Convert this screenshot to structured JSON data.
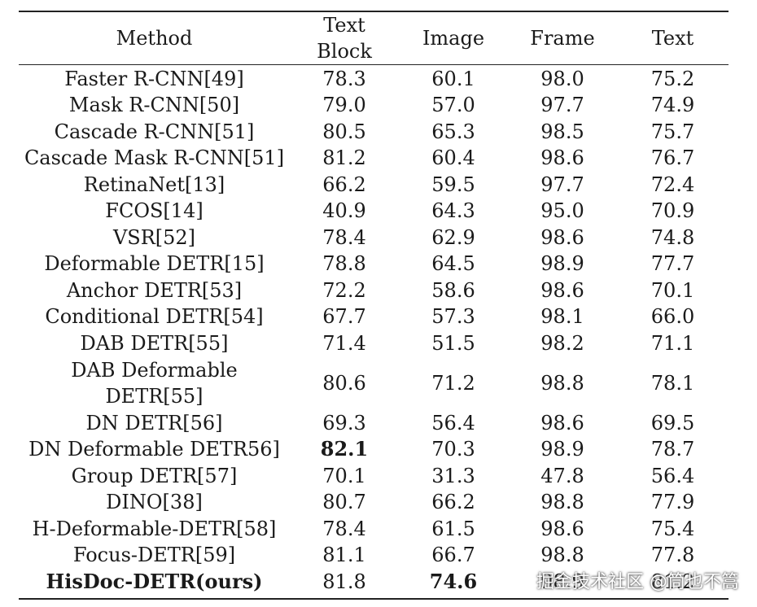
{
  "table": {
    "headers": {
      "method": "Method",
      "text_block_line1": "Text",
      "text_block_line2": "Block",
      "image": "Image",
      "frame": "Frame",
      "text": "Text"
    },
    "rows": [
      {
        "method": "Faster R-CNN[49]",
        "text_block": "78.3",
        "image": "60.1",
        "frame": "98.0",
        "text": "75.2"
      },
      {
        "method": "Mask R-CNN[50]",
        "text_block": "79.0",
        "image": "57.0",
        "frame": "97.7",
        "text": "74.9"
      },
      {
        "method": "Cascade R-CNN[51]",
        "text_block": "80.5",
        "image": "65.3",
        "frame": "98.5",
        "text": "75.7"
      },
      {
        "method": "Cascade Mask R-CNN[51]",
        "text_block": "81.2",
        "image": "60.4",
        "frame": "98.6",
        "text": "76.7"
      },
      {
        "method": "RetinaNet[13]",
        "text_block": "66.2",
        "image": "59.5",
        "frame": "97.7",
        "text": "72.4"
      },
      {
        "method": "FCOS[14]",
        "text_block": "40.9",
        "image": "64.3",
        "frame": "95.0",
        "text": "70.9"
      },
      {
        "method": "VSR[52]",
        "text_block": "78.4",
        "image": "62.9",
        "frame": "98.6",
        "text": "74.8"
      },
      {
        "method": "Deformable DETR[15]",
        "text_block": "78.8",
        "image": "64.5",
        "frame": "98.9",
        "text": "77.7"
      },
      {
        "method": "Anchor DETR[53]",
        "text_block": "72.2",
        "image": "58.6",
        "frame": "98.6",
        "text": "70.1"
      },
      {
        "method": "Conditional DETR[54]",
        "text_block": "67.7",
        "image": "57.3",
        "frame": "98.1",
        "text": "66.0"
      },
      {
        "method": "DAB DETR[55]",
        "text_block": "71.4",
        "image": "51.5",
        "frame": "98.2",
        "text": "71.1"
      },
      {
        "method": "DAB Deformable",
        "method_line2": "DETR[55]",
        "text_block": "80.6",
        "image": "71.2",
        "frame": "98.8",
        "text": "78.1"
      },
      {
        "method": "DN DETR[56]",
        "text_block": "69.3",
        "image": "56.4",
        "frame": "98.6",
        "text": "69.5"
      },
      {
        "method": "DN Deformable DETR56]",
        "text_block": "82.1",
        "image": "70.3",
        "frame": "98.9",
        "text": "78.7"
      },
      {
        "method": "Group DETR[57]",
        "text_block": "70.1",
        "image": "31.3",
        "frame": "47.8",
        "text": "56.4"
      },
      {
        "method": "DINO[38]",
        "text_block": "80.7",
        "image": "66.2",
        "frame": "98.8",
        "text": "77.9"
      },
      {
        "method": "H-Deformable-DETR[58]",
        "text_block": "78.4",
        "image": "61.5",
        "frame": "98.6",
        "text": "75.4"
      },
      {
        "method": "Focus-DETR[59]",
        "text_block": "81.1",
        "image": "66.7",
        "frame": "98.8",
        "text": "77.8"
      },
      {
        "method": "HisDoc-DETR(ours)",
        "text_block": "81.8",
        "image": "74.6",
        "frame": "98.9",
        "text": "81.2"
      }
    ]
  },
  "watermark": "掘金技术社区 @筒也不篙"
}
